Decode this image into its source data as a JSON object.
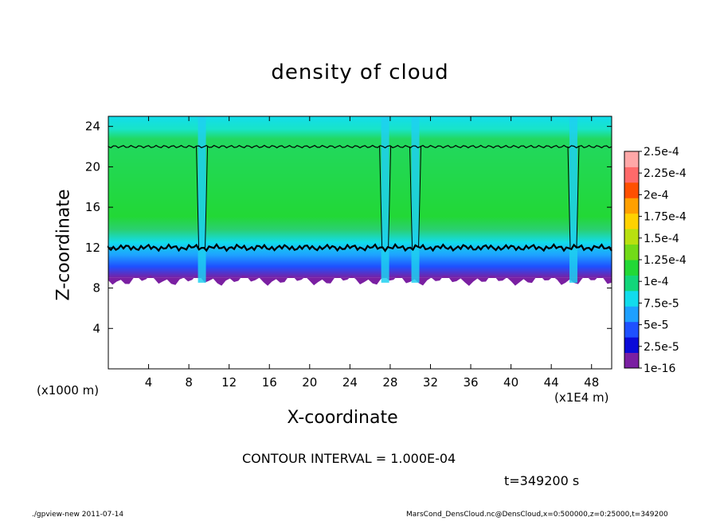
{
  "chart_data": {
    "type": "heatmap",
    "title": "density of cloud",
    "xlabel": "X-coordinate",
    "ylabel": "Z-coordinate",
    "x_unit": "(x1E4 m)",
    "y_unit": "(x1000 m)",
    "xlim": [
      0,
      50
    ],
    "ylim": [
      0,
      25
    ],
    "x_ticks": [
      "4",
      "8",
      "12",
      "16",
      "20",
      "24",
      "28",
      "32",
      "36",
      "40",
      "44",
      "48"
    ],
    "y_ticks": [
      "4",
      "8",
      "12",
      "16",
      "20",
      "24"
    ],
    "colorbar": {
      "labels": [
        "1e-16",
        "2.5e-5",
        "5e-5",
        "7.5e-5",
        "1e-4",
        "1.25e-4",
        "1.5e-4",
        "1.75e-4",
        "2e-4",
        "2.25e-4",
        "2.5e-4"
      ],
      "colors": [
        "#7a1fa2",
        "#0a0ad8",
        "#1e50ff",
        "#1ea0ff",
        "#12dcec",
        "#12d67a",
        "#22d836",
        "#72da18",
        "#b8e010",
        "#ffd200",
        "#ffa000",
        "#ff5000",
        "#ff6a6a",
        "#ffa8a8"
      ]
    },
    "cloud_layer": {
      "base_z": 9,
      "contour_bottom_z": 12,
      "contour_top_z": 22,
      "clear_columns_x": [
        9.3,
        27.5,
        30.5,
        46.2
      ]
    },
    "contour_interval": "CONTOUR INTERVAL = 1.000E-04",
    "time": "t=349200 s"
  },
  "footer": {
    "left": "./gpview-new  2011-07-14",
    "right": "MarsCond_DensCloud.nc@DensCloud,x=0:500000,z=0:25000,t=349200"
  }
}
